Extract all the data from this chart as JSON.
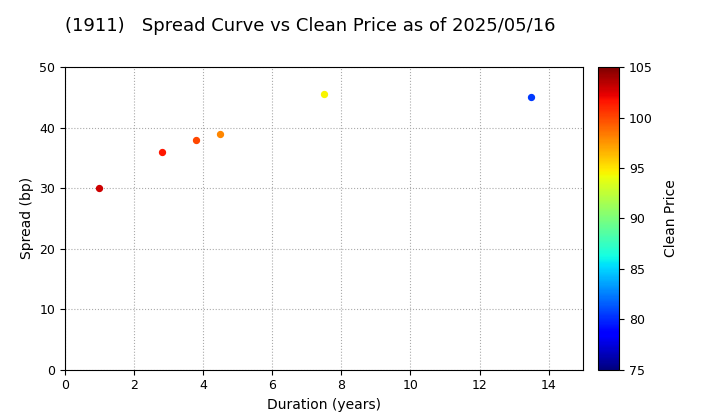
{
  "title": "(1911)   Spread Curve vs Clean Price as of 2025/05/16",
  "xlabel": "Duration (years)",
  "ylabel": "Spread (bp)",
  "colorbar_label": "Clean Price",
  "xlim": [
    0,
    15
  ],
  "ylim": [
    0,
    50
  ],
  "xticks": [
    0,
    2,
    4,
    6,
    8,
    10,
    12,
    14
  ],
  "yticks": [
    0,
    10,
    20,
    30,
    40,
    50
  ],
  "colorbar_min": 75,
  "colorbar_max": 105,
  "colorbar_ticks": [
    75,
    80,
    85,
    90,
    95,
    100,
    105
  ],
  "points": [
    {
      "duration": 1.0,
      "spread": 30.0,
      "price": 103.0
    },
    {
      "duration": 2.8,
      "spread": 36.0,
      "price": 101.5
    },
    {
      "duration": 3.8,
      "spread": 38.0,
      "price": 100.0
    },
    {
      "duration": 4.5,
      "spread": 39.0,
      "price": 98.0
    },
    {
      "duration": 7.5,
      "spread": 45.5,
      "price": 94.5
    },
    {
      "duration": 13.5,
      "spread": 45.0,
      "price": 80.5
    }
  ],
  "background_color": "#ffffff",
  "grid_color": "#aaaaaa",
  "title_fontsize": 13,
  "label_fontsize": 10,
  "tick_fontsize": 9,
  "marker_size": 18
}
